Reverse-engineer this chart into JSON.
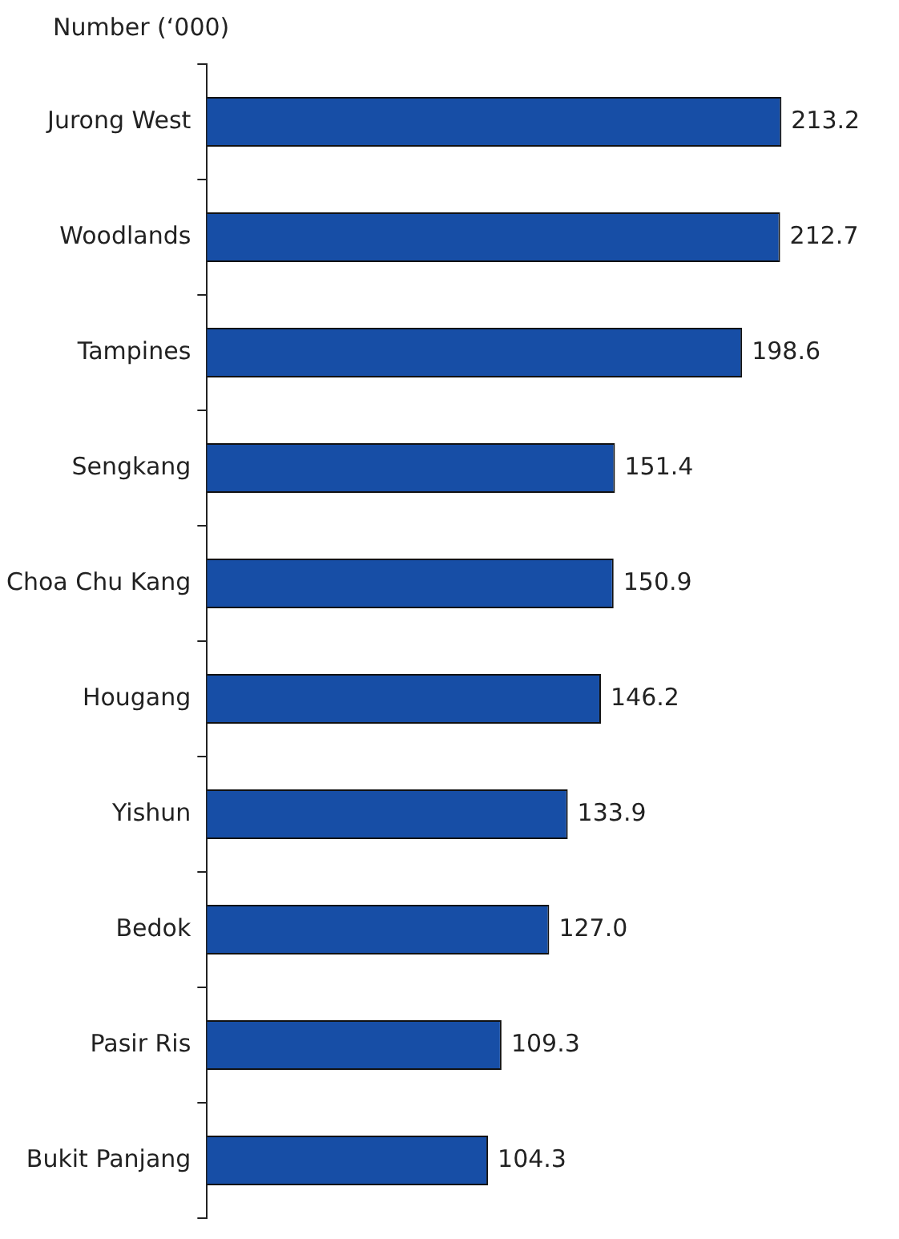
{
  "chart_data": {
    "type": "bar",
    "orientation": "horizontal",
    "ylabel": "Number (‘000)",
    "categories": [
      "Jurong West",
      "Woodlands",
      "Tampines",
      "Sengkang",
      "Choa Chu Kang",
      "Hougang",
      "Yishun",
      "Bedok",
      "Pasir Ris",
      "Bukit Panjang"
    ],
    "values": [
      213.2,
      212.7,
      198.6,
      151.4,
      150.9,
      146.2,
      133.9,
      127.0,
      109.3,
      104.3
    ],
    "value_labels": [
      "213.2",
      "212.7",
      "198.6",
      "151.4",
      "150.9",
      "146.2",
      "133.9",
      "127.0",
      "109.3",
      "104.3"
    ],
    "color": "#174ea6",
    "legend": false,
    "grid": false
  }
}
